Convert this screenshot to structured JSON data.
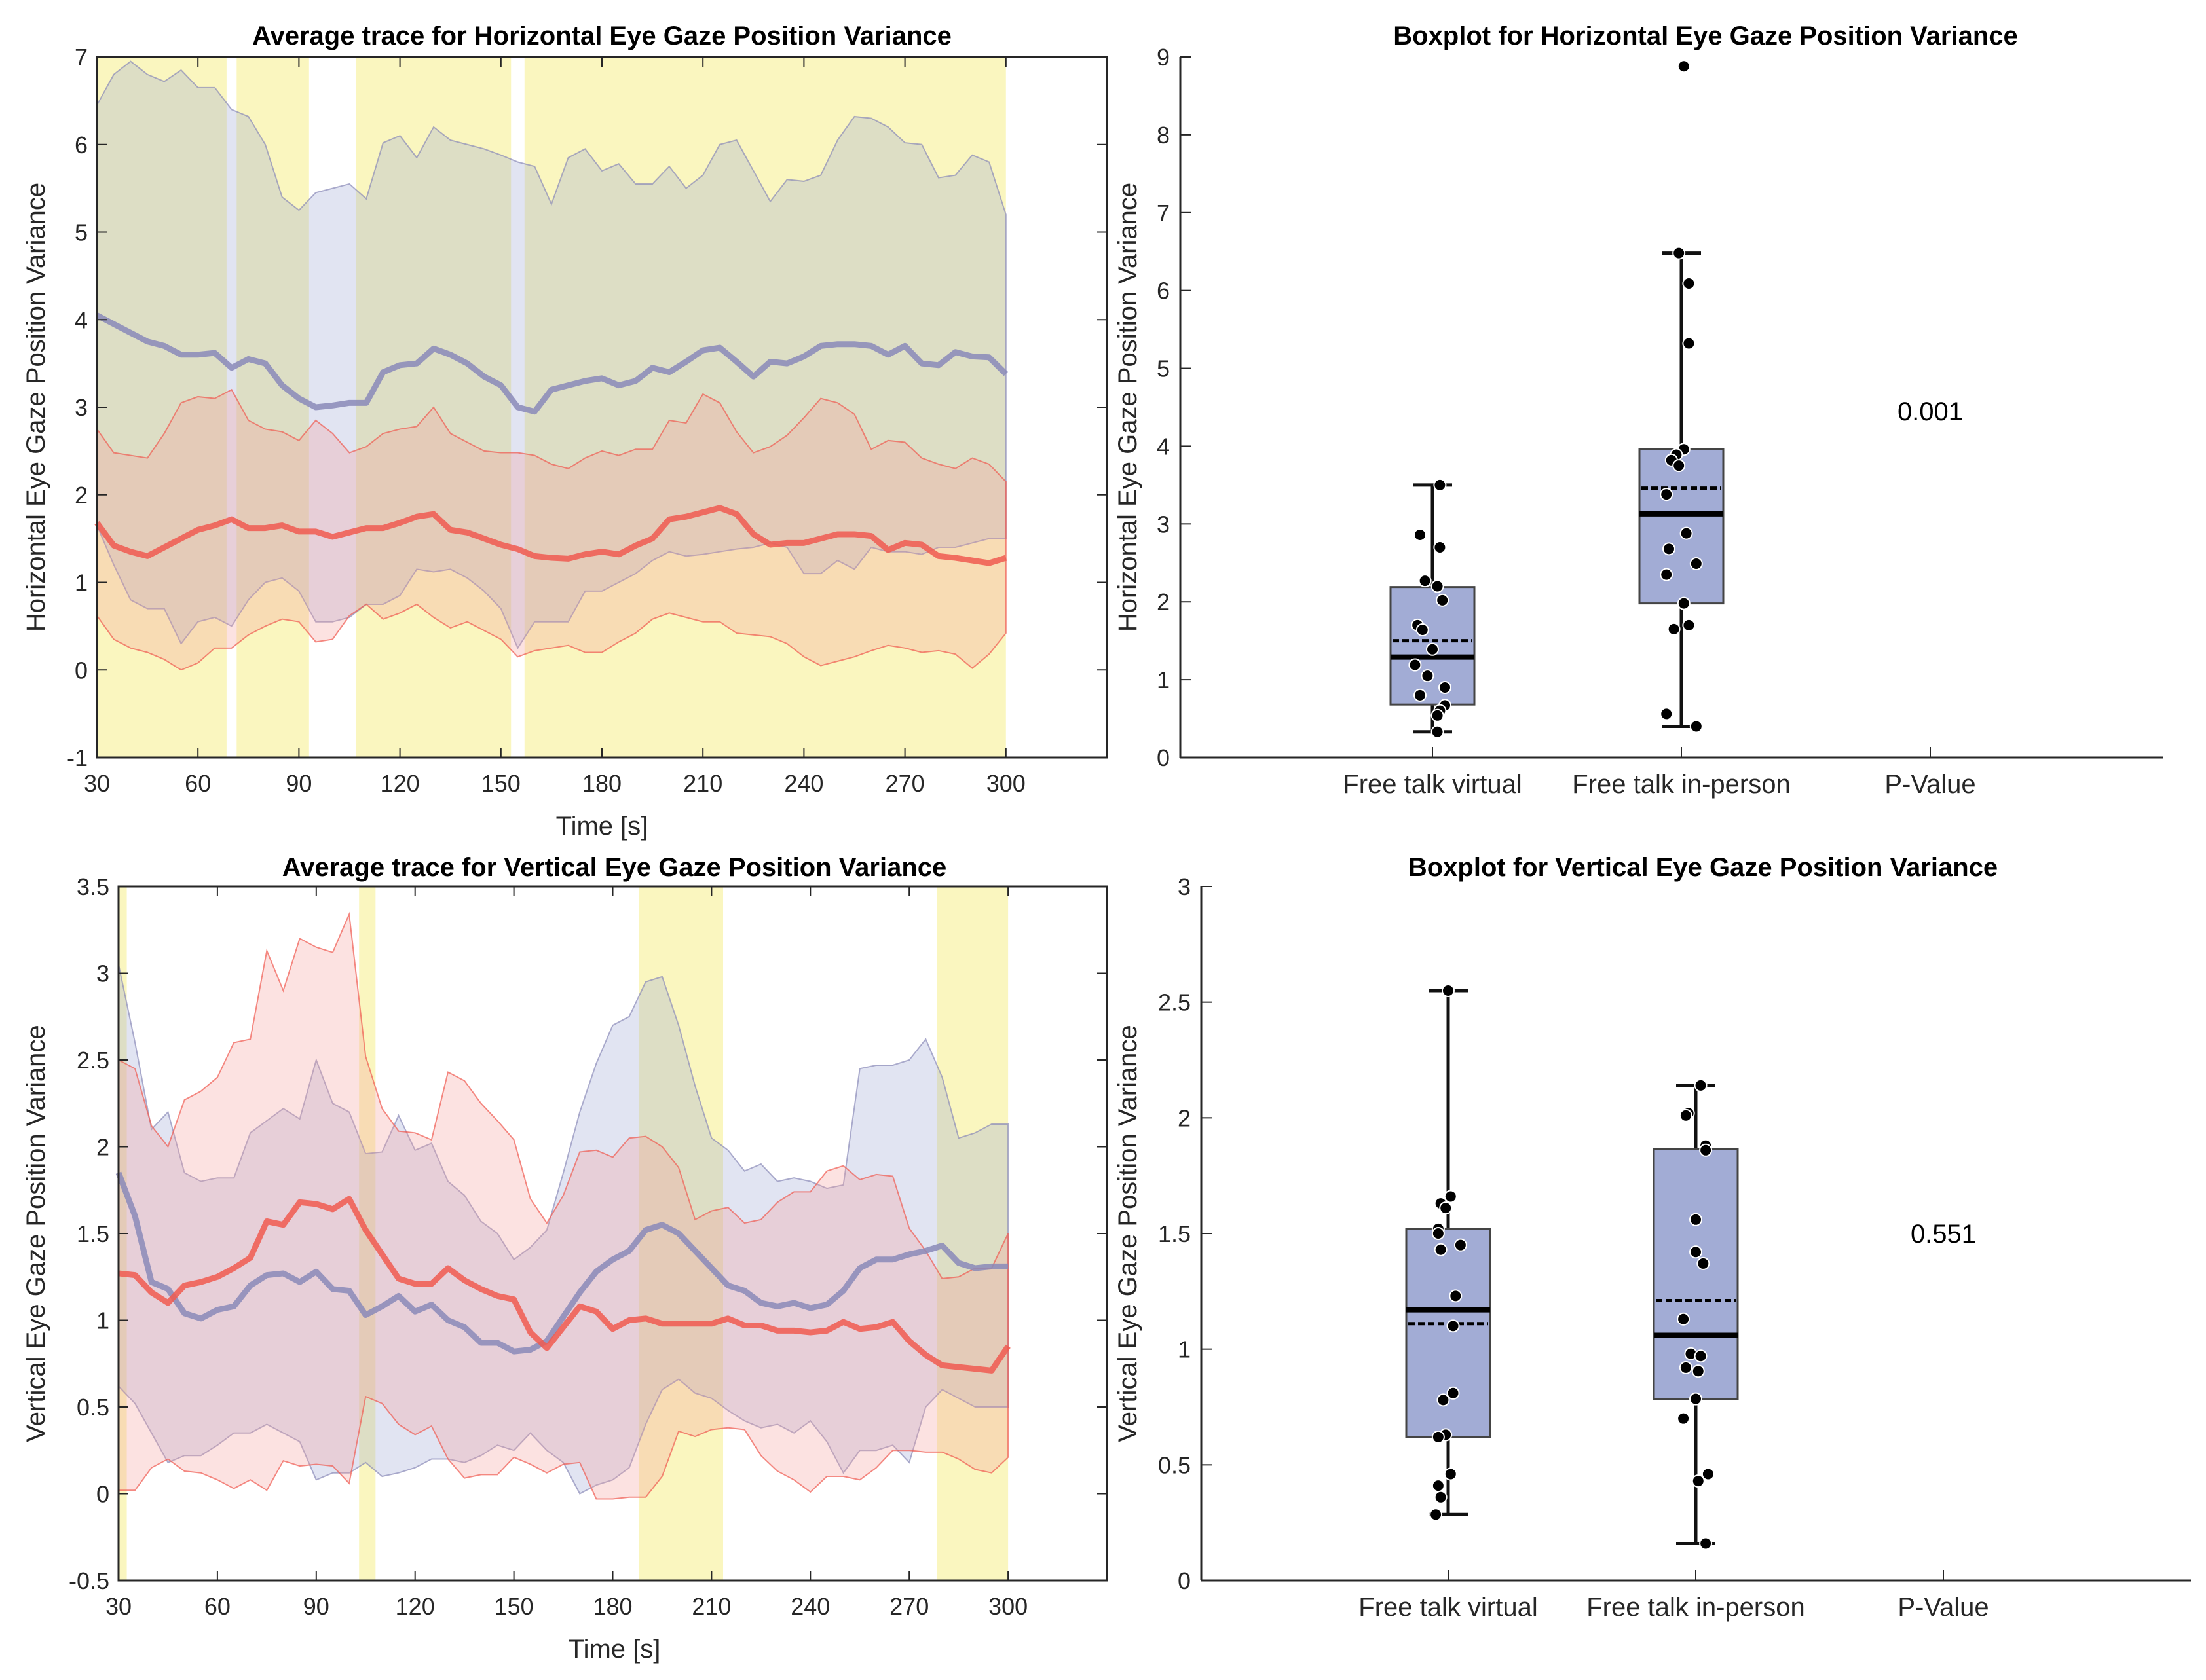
{
  "colors": {
    "significance": "#faf6bf",
    "blue_band": "#9aa6d4",
    "blue_line": "#8a8ab8",
    "red_band": "#f4a09a",
    "red_line": "#f05a50",
    "box_fill": "#a2acd5",
    "box_edge": "#444444"
  },
  "chart_data": [
    {
      "id": "trace_h",
      "type": "area",
      "title": "Average trace for Horizontal Eye Gaze Position Variance",
      "xlabel": "Time [s]",
      "ylabel": "Horizontal Eye Gaze Position Variance",
      "xlim": [
        30,
        330
      ],
      "ylim": [
        -1,
        7
      ],
      "xticks": [
        30,
        60,
        90,
        120,
        150,
        180,
        210,
        240,
        270,
        300
      ],
      "yticks": [
        -1,
        0,
        1,
        2,
        3,
        4,
        5,
        6,
        7
      ],
      "x_start": 30,
      "x_step": 5,
      "significant_intervals": [
        [
          30,
          68.5
        ],
        [
          71.5,
          93
        ],
        [
          107,
          153
        ],
        [
          157,
          300
        ]
      ],
      "series": [
        {
          "name": "Free talk in-person",
          "color": "blue",
          "mean": [
            4.05,
            3.95,
            3.85,
            3.75,
            3.7,
            3.6,
            3.6,
            3.62,
            3.45,
            3.55,
            3.5,
            3.25,
            3.1,
            3.0,
            3.02,
            3.05,
            3.05,
            3.4,
            3.48,
            3.5,
            3.67,
            3.6,
            3.5,
            3.35,
            3.25,
            3.0,
            2.95,
            3.2,
            3.25,
            3.3,
            3.33,
            3.25,
            3.3,
            3.45,
            3.4,
            3.52,
            3.65,
            3.68,
            3.52,
            3.35,
            3.52,
            3.5,
            3.58,
            3.7,
            3.72,
            3.72,
            3.7,
            3.6,
            3.7,
            3.5,
            3.48,
            3.63,
            3.58,
            3.57,
            3.38
          ],
          "upper": [
            6.45,
            6.8,
            6.95,
            6.8,
            6.72,
            6.85,
            6.65,
            6.65,
            6.4,
            6.32,
            6.0,
            5.4,
            5.25,
            5.45,
            5.5,
            5.55,
            5.38,
            6.02,
            6.1,
            5.85,
            6.2,
            6.05,
            6.0,
            5.95,
            5.88,
            5.8,
            5.75,
            5.32,
            5.85,
            5.95,
            5.7,
            5.78,
            5.55,
            5.55,
            5.75,
            5.5,
            5.65,
            6.0,
            6.05,
            5.7,
            5.35,
            5.6,
            5.58,
            5.65,
            6.05,
            6.32,
            6.3,
            6.2,
            6.02,
            6.0,
            5.62,
            5.65,
            5.88,
            5.8,
            5.2
          ],
          "lower": [
            1.65,
            1.2,
            0.8,
            0.7,
            0.7,
            0.3,
            0.55,
            0.6,
            0.5,
            0.8,
            1.0,
            1.05,
            0.9,
            0.55,
            0.55,
            0.6,
            0.75,
            0.75,
            0.85,
            1.15,
            1.12,
            1.15,
            1.05,
            0.9,
            0.7,
            0.25,
            0.55,
            0.55,
            0.55,
            0.9,
            0.9,
            1.0,
            1.1,
            1.25,
            1.35,
            1.3,
            1.32,
            1.35,
            1.38,
            1.4,
            1.45,
            1.4,
            1.1,
            1.1,
            1.25,
            1.15,
            1.4,
            1.35,
            1.35,
            1.32,
            1.4,
            1.4,
            1.45,
            1.5,
            1.5
          ]
        },
        {
          "name": "Free talk virtual",
          "color": "red",
          "mean": [
            1.68,
            1.42,
            1.35,
            1.3,
            1.4,
            1.5,
            1.6,
            1.65,
            1.72,
            1.62,
            1.62,
            1.65,
            1.58,
            1.58,
            1.52,
            1.57,
            1.62,
            1.62,
            1.68,
            1.75,
            1.78,
            1.6,
            1.57,
            1.5,
            1.43,
            1.38,
            1.3,
            1.28,
            1.27,
            1.32,
            1.35,
            1.32,
            1.42,
            1.5,
            1.72,
            1.75,
            1.8,
            1.85,
            1.78,
            1.55,
            1.43,
            1.45,
            1.45,
            1.5,
            1.55,
            1.55,
            1.53,
            1.37,
            1.45,
            1.43,
            1.3,
            1.28,
            1.25,
            1.22,
            1.28
          ],
          "upper": [
            2.75,
            2.48,
            2.45,
            2.42,
            2.7,
            3.05,
            3.12,
            3.1,
            3.2,
            2.85,
            2.75,
            2.72,
            2.62,
            2.85,
            2.7,
            2.48,
            2.55,
            2.7,
            2.75,
            2.78,
            3.0,
            2.7,
            2.6,
            2.5,
            2.48,
            2.48,
            2.45,
            2.35,
            2.3,
            2.42,
            2.5,
            2.45,
            2.52,
            2.52,
            2.85,
            2.82,
            3.15,
            3.05,
            2.72,
            2.48,
            2.55,
            2.68,
            2.88,
            3.1,
            3.05,
            2.92,
            2.52,
            2.62,
            2.6,
            2.42,
            2.35,
            2.3,
            2.42,
            2.35,
            2.15
          ],
          "lower": [
            0.62,
            0.35,
            0.25,
            0.2,
            0.12,
            0.0,
            0.08,
            0.25,
            0.25,
            0.4,
            0.5,
            0.58,
            0.55,
            0.32,
            0.35,
            0.62,
            0.75,
            0.58,
            0.65,
            0.75,
            0.6,
            0.48,
            0.55,
            0.45,
            0.35,
            0.15,
            0.22,
            0.25,
            0.28,
            0.2,
            0.2,
            0.32,
            0.42,
            0.58,
            0.65,
            0.6,
            0.55,
            0.55,
            0.42,
            0.4,
            0.38,
            0.3,
            0.15,
            0.05,
            0.1,
            0.15,
            0.22,
            0.28,
            0.25,
            0.2,
            0.22,
            0.18,
            0.02,
            0.18,
            0.42
          ]
        }
      ]
    },
    {
      "id": "box_h",
      "type": "box",
      "title": "Boxplot for Horizontal Eye Gaze Position Variance",
      "ylabel": "Horizontal Eye Gaze Position Variance",
      "categories": [
        "Free talk virtual",
        "Free talk in-person",
        "P-Value"
      ],
      "ylim": [
        0,
        9
      ],
      "yticks": [
        0,
        1,
        2,
        3,
        4,
        5,
        6,
        7,
        8,
        9
      ],
      "p_value": "0.001",
      "p_value_y": 4.45,
      "boxes": [
        {
          "name": "Free talk virtual",
          "q1": 0.68,
          "median": 1.29,
          "mean": 1.5,
          "q3": 2.19,
          "whisker_low": 0.33,
          "whisker_high": 3.5,
          "points": [
            3.5,
            2.86,
            2.7,
            2.27,
            2.2,
            2.02,
            1.7,
            1.64,
            1.39,
            1.19,
            1.05,
            0.9,
            0.8,
            0.67,
            0.6,
            0.54,
            0.33
          ],
          "jitter": [
            0.03,
            -0.05,
            0.03,
            -0.03,
            0.02,
            0.04,
            -0.06,
            -0.04,
            0.0,
            -0.07,
            -0.02,
            0.05,
            -0.05,
            0.05,
            0.03,
            0.02,
            0.02
          ]
        },
        {
          "name": "Free talk in-person",
          "q1": 1.98,
          "median": 3.13,
          "mean": 3.46,
          "q3": 3.96,
          "whisker_low": 0.4,
          "whisker_high": 6.48,
          "points": [
            8.88,
            6.48,
            6.09,
            5.32,
            3.96,
            3.89,
            3.82,
            3.75,
            3.38,
            2.88,
            2.68,
            2.49,
            2.35,
            1.98,
            1.7,
            1.65,
            0.56,
            0.4
          ],
          "jitter": [
            0.01,
            -0.01,
            0.03,
            0.03,
            0.01,
            -0.02,
            -0.04,
            -0.01,
            -0.06,
            0.02,
            -0.05,
            0.06,
            -0.06,
            0.01,
            0.03,
            -0.03,
            -0.06,
            0.06
          ]
        }
      ]
    },
    {
      "id": "trace_v",
      "type": "area",
      "title": "Average trace for Vertical Eye Gaze Position Variance",
      "xlabel": "Time [s]",
      "ylabel": "Vertical Eye Gaze Position Variance",
      "xlim": [
        30,
        330
      ],
      "ylim": [
        -0.5,
        3.5
      ],
      "xticks": [
        30,
        60,
        90,
        120,
        150,
        180,
        210,
        240,
        270,
        300
      ],
      "yticks": [
        -0.5,
        0,
        0.5,
        1,
        1.5,
        2,
        2.5,
        3,
        3.5
      ],
      "x_start": 30,
      "x_step": 5,
      "significant_intervals": [
        [
          30,
          32.5
        ],
        [
          103,
          108
        ],
        [
          188,
          213.5
        ],
        [
          278.5,
          300
        ]
      ],
      "series": [
        {
          "name": "Free talk in-person",
          "color": "blue",
          "mean": [
            1.85,
            1.6,
            1.22,
            1.18,
            1.04,
            1.01,
            1.06,
            1.08,
            1.2,
            1.26,
            1.27,
            1.22,
            1.28,
            1.18,
            1.17,
            1.03,
            1.08,
            1.14,
            1.05,
            1.09,
            1.0,
            0.96,
            0.87,
            0.87,
            0.82,
            0.83,
            0.88,
            1.02,
            1.16,
            1.28,
            1.35,
            1.4,
            1.52,
            1.55,
            1.5,
            1.4,
            1.3,
            1.2,
            1.17,
            1.1,
            1.08,
            1.1,
            1.07,
            1.09,
            1.17,
            1.3,
            1.35,
            1.35,
            1.38,
            1.4,
            1.43,
            1.33,
            1.3,
            1.31,
            1.31
          ],
          "upper": [
            3.05,
            2.6,
            2.1,
            2.2,
            1.85,
            1.8,
            1.82,
            1.82,
            2.08,
            2.15,
            2.22,
            2.16,
            2.5,
            2.25,
            2.2,
            1.96,
            1.97,
            2.18,
            1.98,
            2.02,
            1.8,
            1.72,
            1.57,
            1.5,
            1.35,
            1.42,
            1.52,
            1.85,
            2.2,
            2.48,
            2.7,
            2.75,
            2.95,
            2.98,
            2.7,
            2.35,
            2.05,
            1.98,
            1.86,
            1.9,
            1.8,
            1.82,
            1.8,
            1.76,
            1.78,
            2.45,
            2.47,
            2.47,
            2.5,
            2.62,
            2.4,
            2.05,
            2.08,
            2.13,
            2.13
          ],
          "lower": [
            0.62,
            0.52,
            0.35,
            0.18,
            0.22,
            0.22,
            0.28,
            0.35,
            0.35,
            0.4,
            0.35,
            0.3,
            0.08,
            0.12,
            0.12,
            0.18,
            0.1,
            0.12,
            0.15,
            0.2,
            0.2,
            0.18,
            0.22,
            0.28,
            0.25,
            0.35,
            0.25,
            0.18,
            0.0,
            0.05,
            0.08,
            0.15,
            0.4,
            0.6,
            0.66,
            0.58,
            0.55,
            0.48,
            0.42,
            0.38,
            0.4,
            0.35,
            0.42,
            0.3,
            0.12,
            0.25,
            0.25,
            0.28,
            0.18,
            0.5,
            0.6,
            0.55,
            0.5,
            0.5,
            0.5
          ],
          "upper_note": "approx"
        },
        {
          "name": "Free talk virtual",
          "color": "red",
          "mean": [
            1.27,
            1.26,
            1.16,
            1.1,
            1.2,
            1.22,
            1.25,
            1.3,
            1.36,
            1.57,
            1.55,
            1.68,
            1.67,
            1.64,
            1.7,
            1.52,
            1.38,
            1.24,
            1.21,
            1.21,
            1.3,
            1.23,
            1.18,
            1.14,
            1.12,
            0.93,
            0.84,
            0.96,
            1.08,
            1.05,
            0.95,
            1.0,
            1.01,
            0.98,
            0.98,
            0.98,
            0.98,
            1.01,
            0.97,
            0.97,
            0.94,
            0.94,
            0.93,
            0.94,
            0.99,
            0.95,
            0.96,
            0.99,
            0.88,
            0.8,
            0.74,
            0.73,
            0.72,
            0.71,
            0.85
          ],
          "upper": [
            2.5,
            2.45,
            2.12,
            2.0,
            2.27,
            2.32,
            2.4,
            2.6,
            2.62,
            3.13,
            2.9,
            3.2,
            3.15,
            3.12,
            3.34,
            2.52,
            2.22,
            2.09,
            2.08,
            2.04,
            2.43,
            2.38,
            2.25,
            2.15,
            2.04,
            1.7,
            1.56,
            1.72,
            1.97,
            1.98,
            1.94,
            2.05,
            2.06,
            2.0,
            1.88,
            1.58,
            1.63,
            1.65,
            1.56,
            1.58,
            1.68,
            1.74,
            1.74,
            1.86,
            1.89,
            1.81,
            1.84,
            1.83,
            1.53,
            1.4,
            1.24,
            1.25,
            1.3,
            1.3,
            1.5
          ],
          "lower": [
            0.02,
            0.02,
            0.15,
            0.2,
            0.13,
            0.12,
            0.08,
            0.03,
            0.08,
            0.02,
            0.19,
            0.16,
            0.17,
            0.16,
            0.06,
            0.56,
            0.52,
            0.4,
            0.34,
            0.39,
            0.2,
            0.09,
            0.11,
            0.11,
            0.21,
            0.17,
            0.12,
            0.17,
            0.18,
            -0.03,
            -0.03,
            -0.02,
            -0.02,
            0.1,
            0.36,
            0.33,
            0.37,
            0.38,
            0.37,
            0.22,
            0.13,
            0.08,
            0.01,
            0.1,
            0.1,
            0.08,
            0.15,
            0.25,
            0.25,
            0.24,
            0.24,
            0.2,
            0.14,
            0.12,
            0.21
          ]
        }
      ]
    },
    {
      "id": "box_v",
      "type": "box",
      "title": "Boxplot for Vertical Eye Gaze Position Variance",
      "ylabel": "Vertical Eye Gaze Position Variance",
      "categories": [
        "Free talk virtual",
        "Free talk in-person",
        "P-Value"
      ],
      "ylim": [
        0,
        3
      ],
      "yticks": [
        0,
        0.5,
        1,
        1.5,
        2,
        2.5,
        3
      ],
      "p_value": "0.551",
      "p_value_y": 1.5,
      "boxes": [
        {
          "name": "Free talk virtual",
          "q1": 0.62,
          "median": 1.17,
          "mean": 1.11,
          "q3": 1.52,
          "whisker_low": 0.285,
          "whisker_high": 2.55,
          "points": [
            2.55,
            1.66,
            1.63,
            1.61,
            1.52,
            1.5,
            1.45,
            1.43,
            1.23,
            1.1,
            0.81,
            0.78,
            0.63,
            0.62,
            0.46,
            0.41,
            0.36,
            0.285
          ],
          "jitter": [
            0.0,
            0.01,
            -0.03,
            -0.01,
            -0.04,
            -0.04,
            0.05,
            -0.03,
            0.03,
            0.02,
            0.02,
            -0.02,
            -0.01,
            -0.04,
            0.01,
            -0.04,
            -0.03,
            -0.05
          ]
        },
        {
          "name": "Free talk in-person",
          "q1": 0.785,
          "median": 1.06,
          "mean": 1.21,
          "q3": 1.865,
          "whisker_low": 0.16,
          "whisker_high": 2.14,
          "points": [
            2.14,
            2.02,
            2.01,
            1.88,
            1.86,
            1.56,
            1.42,
            1.37,
            1.13,
            0.98,
            0.97,
            0.92,
            0.905,
            0.785,
            0.7,
            0.46,
            0.43,
            0.16
          ],
          "jitter": [
            0.02,
            -0.03,
            -0.04,
            0.04,
            0.04,
            0.0,
            0.0,
            0.03,
            -0.05,
            -0.02,
            0.02,
            -0.04,
            0.01,
            0.0,
            -0.05,
            0.05,
            0.01,
            0.04
          ]
        }
      ]
    }
  ]
}
